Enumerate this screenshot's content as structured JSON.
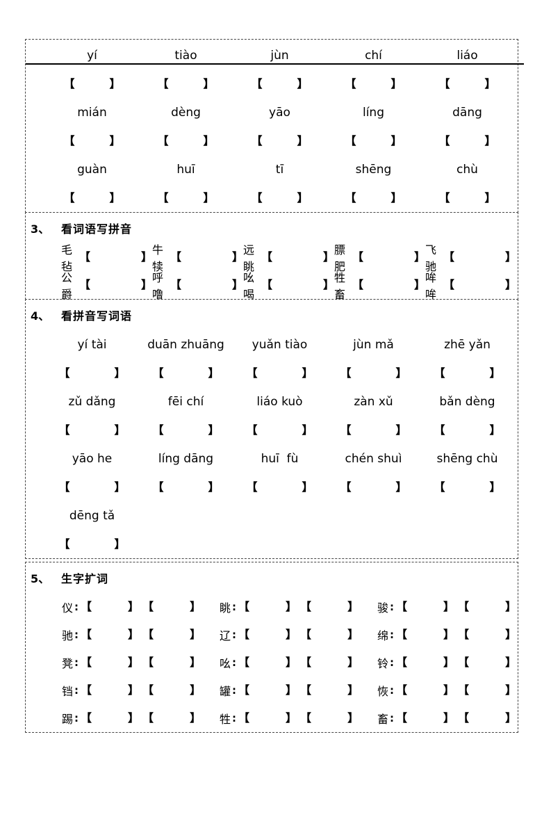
{
  "glyphs": {
    "bracket_open": "【",
    "bracket_close": "】",
    "colon": ":"
  },
  "pinyin_box": {
    "rows": [
      [
        "yí",
        "tiào",
        "jùn",
        "chí",
        "liáo"
      ],
      [
        "mián",
        "dèng",
        "yāo",
        "líng",
        "dāng"
      ],
      [
        "guàn",
        "huī",
        "tī",
        "shēng",
        "chù"
      ]
    ]
  },
  "section3": {
    "number": "3、",
    "title": "看词语写拼音",
    "rows": [
      [
        "毛毡",
        "牛犊",
        "远眺",
        "膘肥",
        "飞驰"
      ],
      [
        "公爵",
        "呼噜",
        "吆喝",
        "牲畜",
        "哞哞"
      ]
    ]
  },
  "section4": {
    "number": "4、",
    "title": "看拼音写词语",
    "rows": [
      [
        "yí tài",
        "duān zhuāng",
        "yuǎn tiào",
        "jùn mǎ",
        "zhē yǎn"
      ],
      [
        "zǔ dǎng",
        "fēi chí",
        "liáo kuò",
        "zàn xǔ",
        "bǎn dèng"
      ],
      [
        "yāo he",
        "líng dāng",
        "huī  fù",
        "chén shuì",
        "shēng chù"
      ],
      [
        "dēng tǎ"
      ]
    ]
  },
  "section5": {
    "number": "5、",
    "title": "生字扩词",
    "rows": [
      [
        "仪",
        "眺",
        "骏"
      ],
      [
        "驰",
        "辽",
        "绵"
      ],
      [
        "凳",
        "吆",
        "铃"
      ],
      [
        "铛",
        "罐",
        "恢"
      ],
      [
        "踢",
        "牲",
        "畜"
      ]
    ]
  }
}
